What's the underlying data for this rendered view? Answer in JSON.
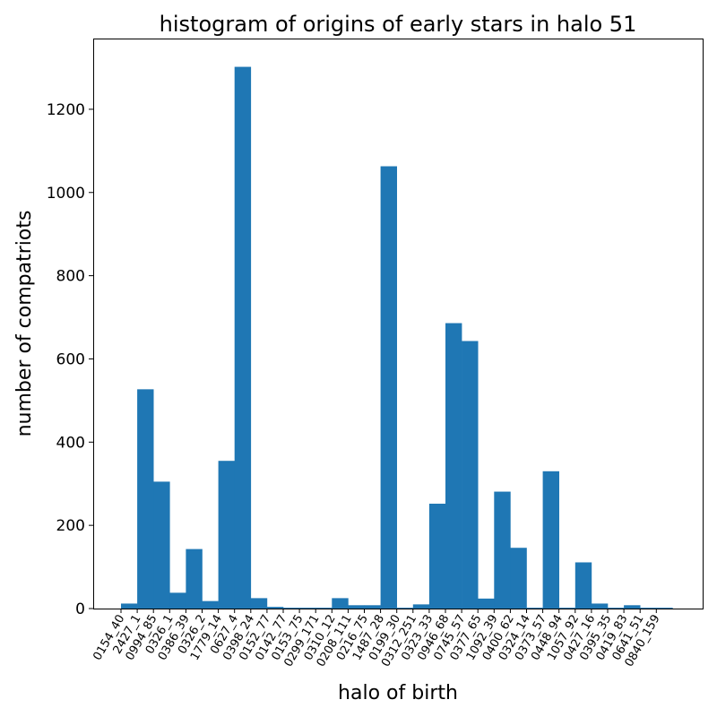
{
  "chart_data": {
    "type": "bar",
    "title": "histogram of origins of early stars in halo 51",
    "xlabel": "halo of birth",
    "ylabel": "number of compatriots",
    "ylim": [
      0,
      1370
    ],
    "yticks": [
      0,
      200,
      400,
      600,
      800,
      1000,
      1200
    ],
    "bar_color": "#1f77b4",
    "grid": false,
    "legend": "none",
    "tick_labels": [
      "0154_40",
      "2427_1",
      "0994_85",
      "0326_1",
      "0386_39",
      "0326_2",
      "1779_14",
      "0627_4",
      "0398_24",
      "0152_77",
      "0142_77",
      "0153_75",
      "0299_171",
      "0310_12",
      "0208_111",
      "0216_75",
      "1487_28",
      "0199_30",
      "0312_251",
      "0323_33",
      "0946_68",
      "0745_57",
      "0377_65",
      "1092_39",
      "0400_62",
      "0324_14",
      "0373_57",
      "0448_94",
      "1057_92",
      "0427_16",
      "0395_35",
      "0419_83",
      "0641_51",
      "0840_159"
    ],
    "values": [
      12,
      527,
      305,
      38,
      143,
      18,
      355,
      1302,
      25,
      4,
      2,
      2,
      2,
      25,
      8,
      8,
      1063,
      2,
      10,
      252,
      686,
      643,
      24,
      281,
      146,
      2,
      330,
      2,
      111,
      12,
      2,
      8,
      2,
      2
    ]
  }
}
